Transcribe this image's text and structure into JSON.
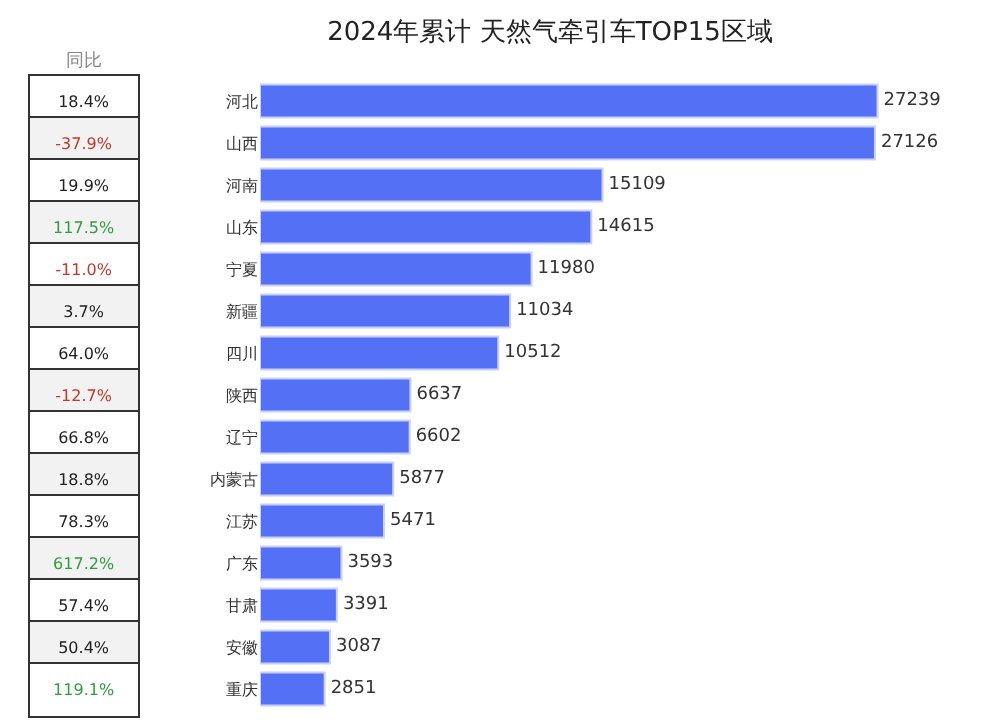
{
  "chart_data": {
    "type": "bar",
    "orientation": "horizontal",
    "title": "2024年累计 天然气牵引车TOP15区域",
    "categories": [
      "河北",
      "山西",
      "河南",
      "山东",
      "宁夏",
      "新疆",
      "四川",
      "陕西",
      "辽宁",
      "内蒙古",
      "江苏",
      "广东",
      "甘肃",
      "安徽",
      "重庆"
    ],
    "values": [
      27239,
      27126,
      15109,
      14615,
      11980,
      11034,
      10512,
      6637,
      6602,
      5877,
      5471,
      3593,
      3391,
      3087,
      2851
    ],
    "color": "#5470f5",
    "data_labels": true,
    "annotations": [
      "同比",
      "18.4%",
      "-37.9%",
      "19.9%",
      "117.5%",
      "-11.0%",
      "3.7%",
      "64.0%",
      "-12.7%",
      "66.8%",
      "18.8%",
      "78.3%",
      "617.2%",
      "57.4%",
      "50.4%",
      "119.1%"
    ]
  }
}
